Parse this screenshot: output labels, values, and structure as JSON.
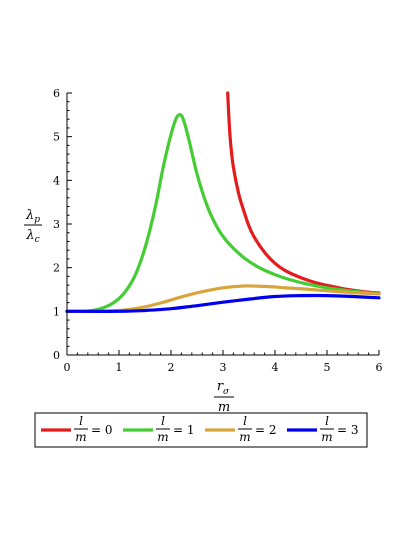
{
  "chart_data": {
    "type": "line",
    "title": "",
    "xlabel": {
      "numerator": "r",
      "numerator_subscript": "σ",
      "denominator": "m"
    },
    "ylabel": {
      "numerator": "λ",
      "numerator_subscript": "p",
      "denominator": "λ",
      "denominator_subscript": "c"
    },
    "xlim": [
      0,
      6
    ],
    "ylim": [
      0,
      6
    ],
    "x_ticks": [
      "0",
      "1",
      "2",
      "3",
      "4",
      "5",
      "6"
    ],
    "y_ticks": [
      "0",
      "1",
      "2",
      "3",
      "4",
      "5",
      "6"
    ],
    "grid": false,
    "legend_placement": "bottom",
    "series": [
      {
        "name": "l/m = 0",
        "legend": {
          "numerator": "l",
          "denominator": "m",
          "value": "= 0"
        },
        "color": "#e41a1c",
        "points": [
          [
            3.09,
            6.0
          ],
          [
            3.12,
            5.3
          ],
          [
            3.15,
            4.8
          ],
          [
            3.2,
            4.3
          ],
          [
            3.3,
            3.7
          ],
          [
            3.4,
            3.3
          ],
          [
            3.5,
            2.95
          ],
          [
            3.6,
            2.7
          ],
          [
            3.8,
            2.35
          ],
          [
            4.0,
            2.1
          ],
          [
            4.2,
            1.93
          ],
          [
            4.5,
            1.77
          ],
          [
            4.8,
            1.65
          ],
          [
            5.1,
            1.57
          ],
          [
            5.4,
            1.5
          ],
          [
            5.7,
            1.45
          ],
          [
            6.0,
            1.42
          ]
        ]
      },
      {
        "name": "l/m = 1",
        "legend": {
          "numerator": "l",
          "denominator": "m",
          "value": "= 1"
        },
        "color": "#44cc33",
        "points": [
          [
            0.0,
            1.0
          ],
          [
            0.3,
            1.0
          ],
          [
            0.5,
            1.02
          ],
          [
            0.7,
            1.08
          ],
          [
            0.9,
            1.2
          ],
          [
            1.1,
            1.42
          ],
          [
            1.3,
            1.8
          ],
          [
            1.5,
            2.45
          ],
          [
            1.7,
            3.4
          ],
          [
            1.85,
            4.3
          ],
          [
            2.0,
            5.05
          ],
          [
            2.1,
            5.42
          ],
          [
            2.18,
            5.5
          ],
          [
            2.25,
            5.35
          ],
          [
            2.35,
            4.9
          ],
          [
            2.5,
            4.15
          ],
          [
            2.7,
            3.4
          ],
          [
            2.9,
            2.9
          ],
          [
            3.1,
            2.57
          ],
          [
            3.4,
            2.23
          ],
          [
            3.7,
            2.0
          ],
          [
            4.0,
            1.84
          ],
          [
            4.3,
            1.72
          ],
          [
            4.6,
            1.63
          ],
          [
            5.0,
            1.54
          ],
          [
            5.5,
            1.46
          ],
          [
            6.0,
            1.4
          ]
        ]
      },
      {
        "name": "l/m = 2",
        "legend": {
          "numerator": "l",
          "denominator": "m",
          "value": "= 2"
        },
        "color": "#d9a53a",
        "points": [
          [
            0.0,
            1.0
          ],
          [
            0.6,
            1.0
          ],
          [
            1.0,
            1.02
          ],
          [
            1.4,
            1.08
          ],
          [
            1.8,
            1.19
          ],
          [
            2.2,
            1.33
          ],
          [
            2.6,
            1.45
          ],
          [
            3.0,
            1.54
          ],
          [
            3.4,
            1.58
          ],
          [
            3.8,
            1.57
          ],
          [
            4.2,
            1.54
          ],
          [
            4.6,
            1.51
          ],
          [
            5.0,
            1.47
          ],
          [
            5.5,
            1.43
          ],
          [
            6.0,
            1.4
          ]
        ]
      },
      {
        "name": "l/m = 3",
        "legend": {
          "numerator": "l",
          "denominator": "m",
          "value": "= 3"
        },
        "color": "#0000ee",
        "points": [
          [
            0.0,
            1.0
          ],
          [
            1.0,
            1.0
          ],
          [
            1.5,
            1.02
          ],
          [
            2.0,
            1.06
          ],
          [
            2.5,
            1.13
          ],
          [
            3.0,
            1.21
          ],
          [
            3.5,
            1.28
          ],
          [
            4.0,
            1.34
          ],
          [
            4.5,
            1.36
          ],
          [
            5.0,
            1.36
          ],
          [
            5.5,
            1.34
          ],
          [
            6.0,
            1.31
          ]
        ]
      }
    ]
  }
}
